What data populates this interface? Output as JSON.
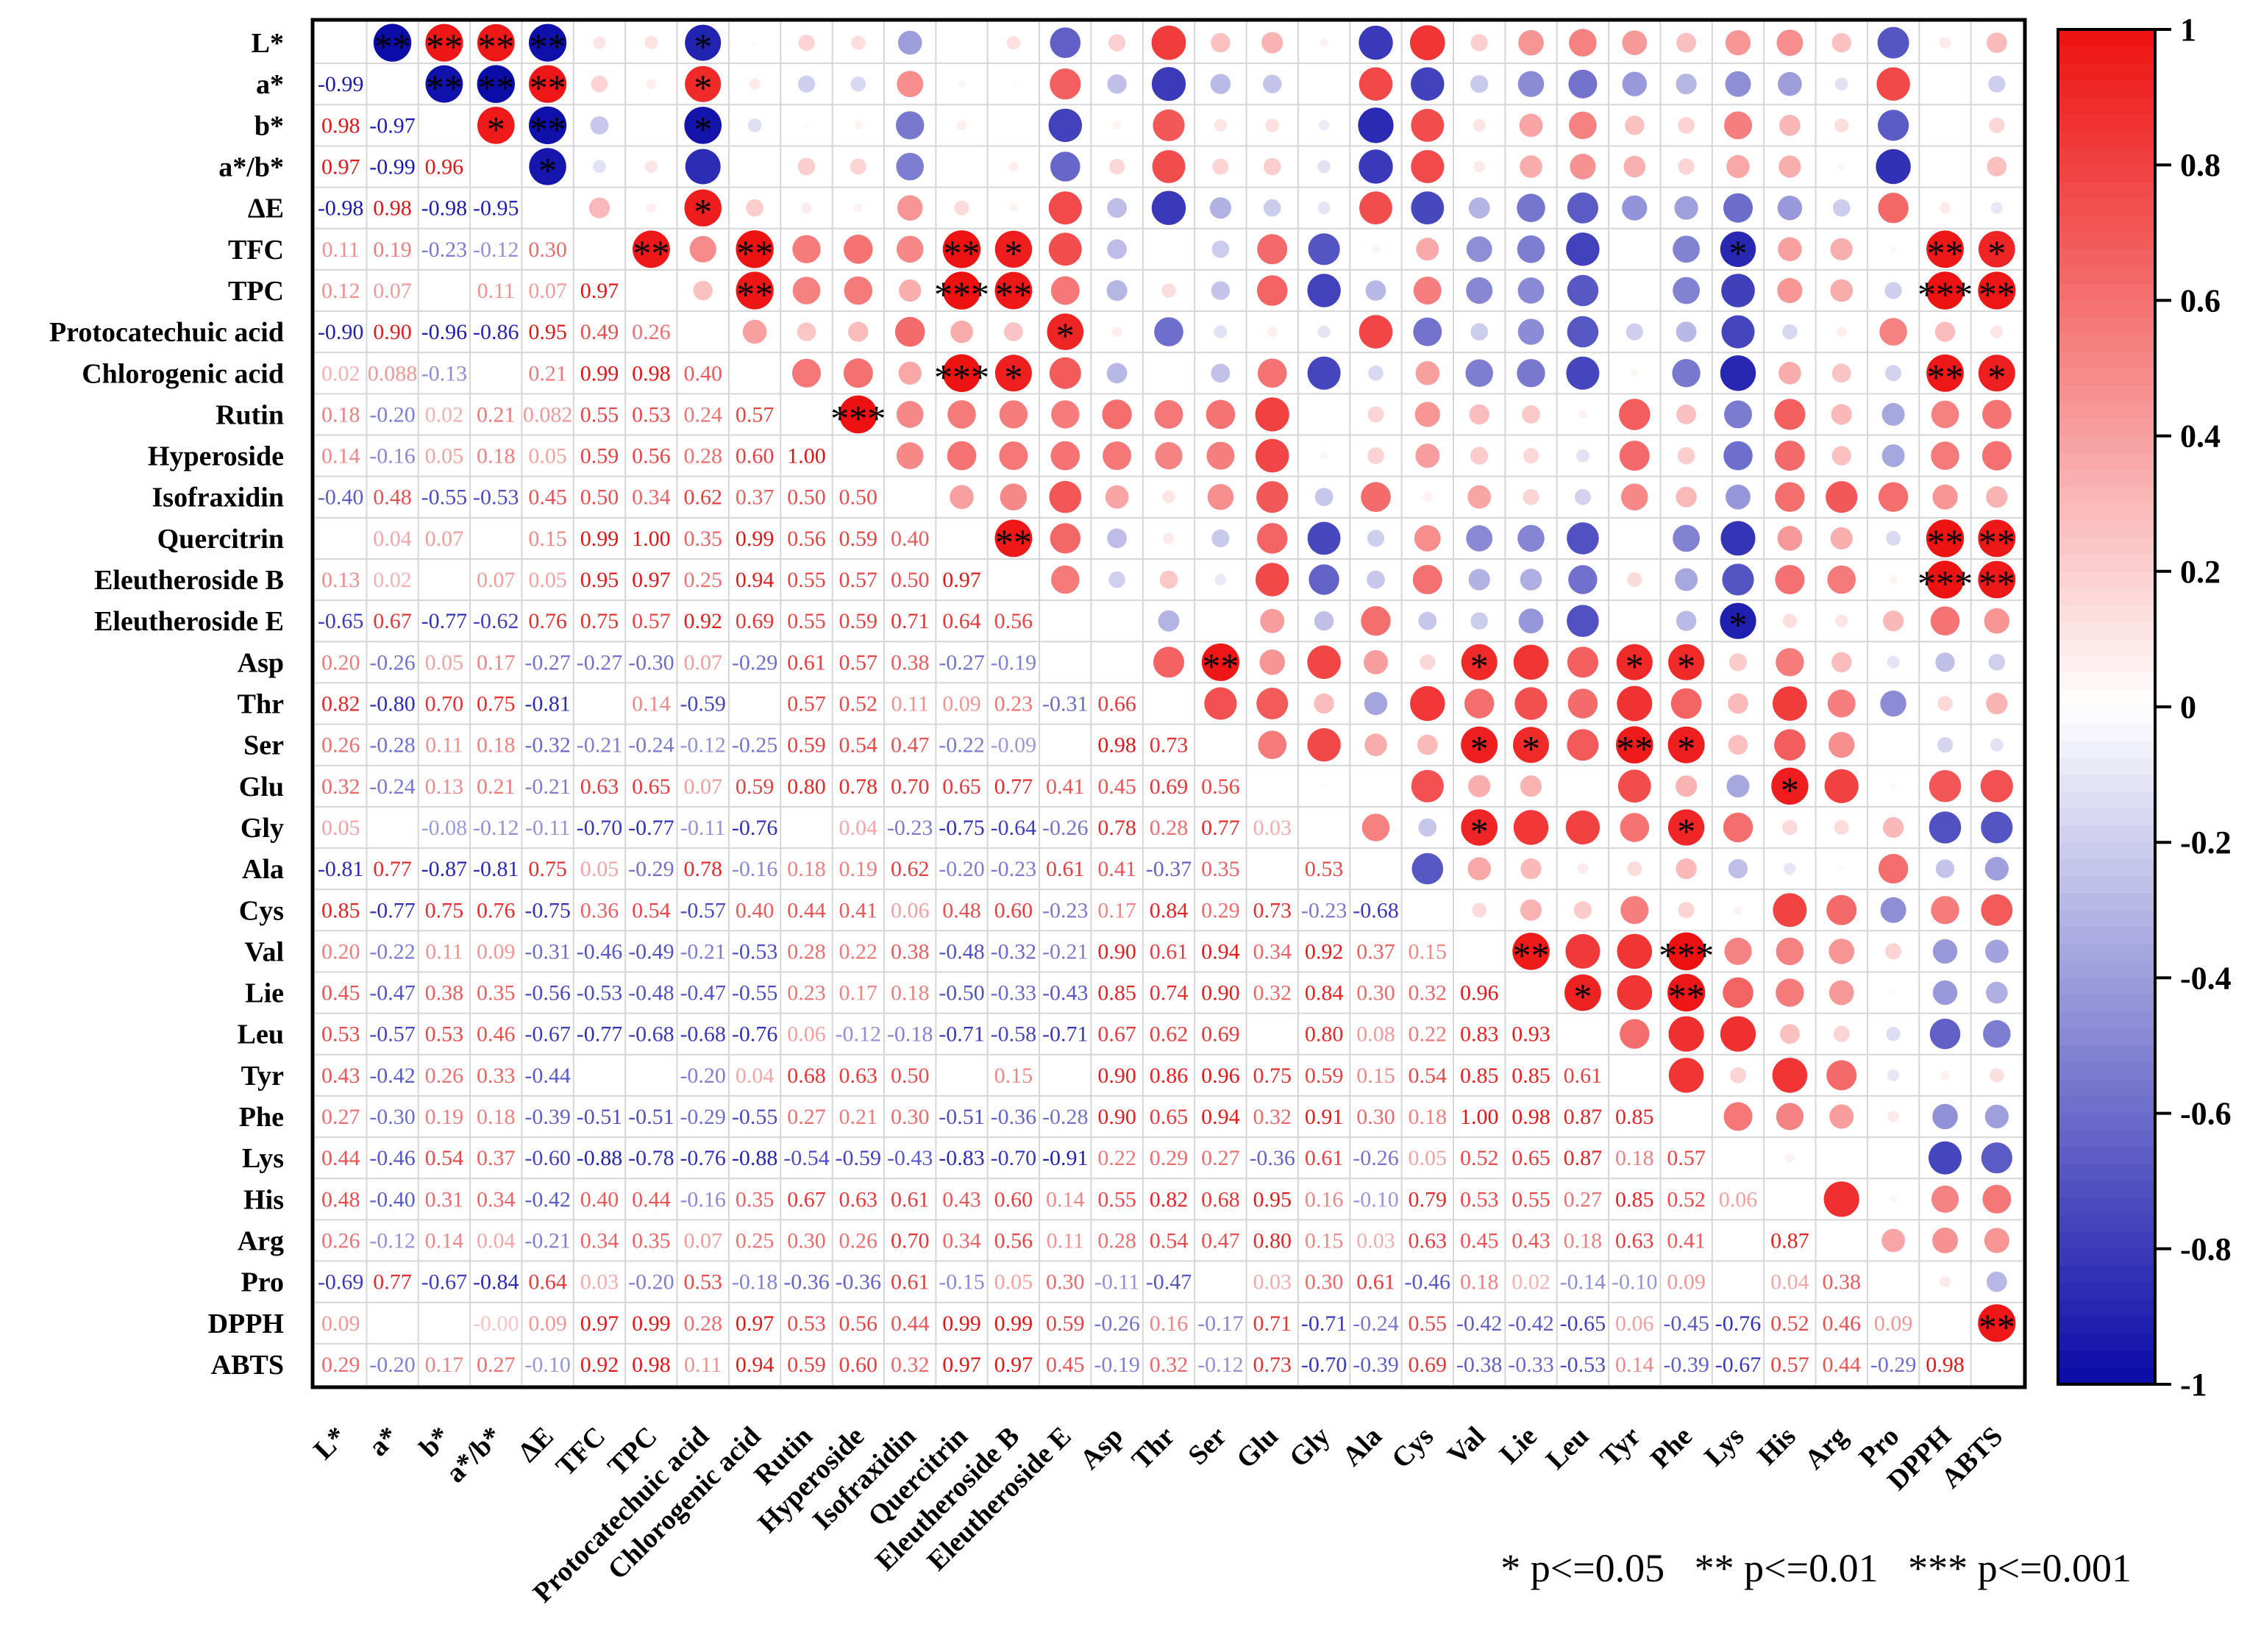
{
  "chart_data": {
    "type": "heatmap",
    "title": "",
    "xlabel": "",
    "ylabel": "",
    "labels": [
      "L*",
      "a*",
      "b*",
      "a*/b*",
      "ΔE",
      "TFC",
      "TPC",
      "Protocatechuic acid",
      "Chlorogenic acid",
      "Rutin",
      "Hyperoside",
      "Isofraxidin",
      "Quercitrin",
      "Eleutheroside B",
      "Eleutheroside E",
      "Asp",
      "Thr",
      "Ser",
      "Glu",
      "Gly",
      "Ala",
      "Cys",
      "Val",
      "Lie",
      "Leu",
      "Tyr",
      "Phe",
      "Lys",
      "His",
      "Arg",
      "Pro",
      "DPPH",
      "ABTS"
    ],
    "lower_values": [
      [],
      [
        "-0.99"
      ],
      [
        "0.98",
        "-0.97"
      ],
      [
        "0.97",
        "-0.99",
        "0.96"
      ],
      [
        "-0.98",
        "0.98",
        "-0.98",
        "-0.95"
      ],
      [
        "0.11",
        "0.19",
        "-0.23",
        "-0.12",
        "0.30"
      ],
      [
        "0.12",
        "0.07",
        "",
        "0.11",
        "0.07",
        "0.97"
      ],
      [
        "-0.90",
        "0.90",
        "-0.96",
        "-0.86",
        "0.95",
        "0.49",
        "0.26"
      ],
      [
        "0.02",
        "0.088",
        "-0.13",
        "",
        "0.21",
        "0.99",
        "0.98",
        "0.40"
      ],
      [
        "0.18",
        "-0.20",
        "0.02",
        "0.21",
        "0.082",
        "0.55",
        "0.53",
        "0.24",
        "0.57"
      ],
      [
        "0.14",
        "-0.16",
        "0.05",
        "0.18",
        "0.05",
        "0.59",
        "0.56",
        "0.28",
        "0.60",
        "1.00"
      ],
      [
        "-0.40",
        "0.48",
        "-0.55",
        "-0.53",
        "0.45",
        "0.50",
        "0.34",
        "0.62",
        "0.37",
        "0.50",
        "0.50"
      ],
      [
        "",
        "0.04",
        "0.07",
        "",
        "0.15",
        "0.99",
        "1.00",
        "0.35",
        "0.99",
        "0.56",
        "0.59",
        "0.40"
      ],
      [
        "0.13",
        "0.02",
        "",
        "0.07",
        "0.05",
        "0.95",
        "0.97",
        "0.25",
        "0.94",
        "0.55",
        "0.57",
        "0.50",
        "0.97"
      ],
      [
        "-0.65",
        "0.67",
        "-0.77",
        "-0.62",
        "0.76",
        "0.75",
        "0.57",
        "0.92",
        "0.69",
        "0.55",
        "0.59",
        "0.71",
        "0.64",
        "0.56"
      ],
      [
        "0.20",
        "-0.26",
        "0.05",
        "0.17",
        "-0.27",
        "-0.27",
        "-0.30",
        "0.07",
        "-0.29",
        "0.61",
        "0.57",
        "0.38",
        "-0.27",
        "-0.19",
        ""
      ],
      [
        "0.82",
        "-0.80",
        "0.70",
        "0.75",
        "-0.81",
        "",
        "0.14",
        "-0.59",
        "",
        "0.57",
        "0.52",
        "0.11",
        "0.09",
        "0.23",
        "-0.31",
        "0.66"
      ],
      [
        "0.26",
        "-0.28",
        "0.11",
        "0.18",
        "-0.32",
        "-0.21",
        "-0.24",
        "-0.12",
        "-0.25",
        "0.59",
        "0.54",
        "0.47",
        "-0.22",
        "-0.09",
        "",
        "0.98",
        "0.73"
      ],
      [
        "0.32",
        "-0.24",
        "0.13",
        "0.21",
        "-0.21",
        "0.63",
        "0.65",
        "0.07",
        "0.59",
        "0.80",
        "0.78",
        "0.70",
        "0.65",
        "0.77",
        "0.41",
        "0.45",
        "0.69",
        "0.56"
      ],
      [
        "0.05",
        "",
        "-0.08",
        "-0.12",
        "-0.11",
        "-0.70",
        "-0.77",
        "-0.11",
        "-0.76",
        "",
        "0.04",
        "-0.23",
        "-0.75",
        "-0.64",
        "-0.26",
        "0.78",
        "0.28",
        "0.77",
        "0.03"
      ],
      [
        "-0.81",
        "0.77",
        "-0.87",
        "-0.81",
        "0.75",
        "0.05",
        "-0.29",
        "0.78",
        "-0.16",
        "0.18",
        "0.19",
        "0.62",
        "-0.20",
        "-0.23",
        "0.61",
        "0.41",
        "-0.37",
        "0.35",
        "",
        "0.53"
      ],
      [
        "0.85",
        "-0.77",
        "0.75",
        "0.76",
        "-0.75",
        "0.36",
        "0.54",
        "-0.57",
        "0.40",
        "0.44",
        "0.41",
        "0.06",
        "0.48",
        "0.60",
        "-0.23",
        "0.17",
        "0.84",
        "0.29",
        "0.73",
        "-0.23",
        "-0.68"
      ],
      [
        "0.20",
        "-0.22",
        "0.11",
        "0.09",
        "-0.31",
        "-0.46",
        "-0.49",
        "-0.21",
        "-0.53",
        "0.28",
        "0.22",
        "0.38",
        "-0.48",
        "-0.32",
        "-0.21",
        "0.90",
        "0.61",
        "0.94",
        "0.34",
        "0.92",
        "0.37",
        "0.15"
      ],
      [
        "0.45",
        "-0.47",
        "0.38",
        "0.35",
        "-0.56",
        "-0.53",
        "-0.48",
        "-0.47",
        "-0.55",
        "0.23",
        "0.17",
        "0.18",
        "-0.50",
        "-0.33",
        "-0.43",
        "0.85",
        "0.74",
        "0.90",
        "0.32",
        "0.84",
        "0.30",
        "0.32",
        "0.96"
      ],
      [
        "0.53",
        "-0.57",
        "0.53",
        "0.46",
        "-0.67",
        "-0.77",
        "-0.68",
        "-0.68",
        "-0.76",
        "0.06",
        "-0.12",
        "-0.18",
        "-0.71",
        "-0.58",
        "-0.71",
        "0.67",
        "0.62",
        "0.69",
        "",
        "0.80",
        "0.08",
        "0.22",
        "0.83",
        "0.93"
      ],
      [
        "0.43",
        "-0.42",
        "0.26",
        "0.33",
        "-0.44",
        "",
        "",
        "-0.20",
        "0.04",
        "0.68",
        "0.63",
        "0.50",
        "",
        "0.15",
        "",
        "0.90",
        "0.86",
        "0.96",
        "0.75",
        "0.59",
        "0.15",
        "0.54",
        "0.85",
        "0.85",
        "0.61"
      ],
      [
        "0.27",
        "-0.30",
        "0.19",
        "0.18",
        "-0.39",
        "-0.51",
        "-0.51",
        "-0.29",
        "-0.55",
        "0.27",
        "0.21",
        "0.30",
        "-0.51",
        "-0.36",
        "-0.28",
        "0.90",
        "0.65",
        "0.94",
        "0.32",
        "0.91",
        "0.30",
        "0.18",
        "1.00",
        "0.98",
        "0.87",
        "0.85"
      ],
      [
        "0.44",
        "-0.46",
        "0.54",
        "0.37",
        "-0.60",
        "-0.88",
        "-0.78",
        "-0.76",
        "-0.88",
        "-0.54",
        "-0.59",
        "-0.43",
        "-0.83",
        "-0.70",
        "-0.91",
        "0.22",
        "0.29",
        "0.27",
        "-0.36",
        "0.61",
        "-0.26",
        "0.05",
        "0.52",
        "0.65",
        "0.87",
        "0.18",
        "0.57"
      ],
      [
        "0.48",
        "-0.40",
        "0.31",
        "0.34",
        "-0.42",
        "0.40",
        "0.44",
        "-0.16",
        "0.35",
        "0.67",
        "0.63",
        "0.61",
        "0.43",
        "0.60",
        "0.14",
        "0.55",
        "0.82",
        "0.68",
        "0.95",
        "0.16",
        "-0.10",
        "0.79",
        "0.53",
        "0.55",
        "0.27",
        "0.85",
        "0.52",
        "0.06"
      ],
      [
        "0.26",
        "-0.12",
        "0.14",
        "0.04",
        "-0.21",
        "0.34",
        "0.35",
        "0.07",
        "0.25",
        "0.30",
        "0.26",
        "0.70",
        "0.34",
        "0.56",
        "0.11",
        "0.28",
        "0.54",
        "0.47",
        "0.80",
        "0.15",
        "0.03",
        "0.63",
        "0.45",
        "0.43",
        "0.18",
        "0.63",
        "0.41",
        "",
        "0.87"
      ],
      [
        "-0.69",
        "0.77",
        "-0.67",
        "-0.84",
        "0.64",
        "0.03",
        "-0.20",
        "0.53",
        "-0.18",
        "-0.36",
        "-0.36",
        "0.61",
        "-0.15",
        "0.05",
        "0.30",
        "-0.11",
        "-0.47",
        "",
        "0.03",
        "0.30",
        "0.61",
        "-0.46",
        "0.18",
        "0.02",
        "-0.14",
        "-0.10",
        "0.09",
        "",
        "0.04",
        "0.38"
      ],
      [
        "0.09",
        "",
        "",
        "-0.00",
        "0.09",
        "0.97",
        "0.99",
        "0.28",
        "0.97",
        "0.53",
        "0.56",
        "0.44",
        "0.99",
        "0.99",
        "0.59",
        "-0.26",
        "0.16",
        "-0.17",
        "0.71",
        "-0.71",
        "-0.24",
        "0.55",
        "-0.42",
        "-0.42",
        "-0.65",
        "0.06",
        "-0.45",
        "-0.76",
        "0.52",
        "0.46",
        "0.09"
      ],
      [
        "0.29",
        "-0.20",
        "0.17",
        "0.27",
        "-0.10",
        "0.92",
        "0.98",
        "0.11",
        "0.94",
        "0.59",
        "0.60",
        "0.32",
        "0.97",
        "0.97",
        "0.45",
        "-0.19",
        "0.32",
        "-0.12",
        "0.73",
        "-0.70",
        "-0.39",
        "0.69",
        "-0.38",
        "-0.33",
        "-0.53",
        "0.14",
        "-0.39",
        "-0.67",
        "0.57",
        "0.44",
        "-0.29",
        "0.98"
      ]
    ],
    "significance": [
      {
        "row": 0,
        "col": 1,
        "marker": "**"
      },
      {
        "row": 0,
        "col": 2,
        "marker": "**"
      },
      {
        "row": 0,
        "col": 3,
        "marker": "**"
      },
      {
        "row": 0,
        "col": 4,
        "marker": "**"
      },
      {
        "row": 0,
        "col": 7,
        "marker": "*"
      },
      {
        "row": 1,
        "col": 2,
        "marker": "**"
      },
      {
        "row": 1,
        "col": 3,
        "marker": "**"
      },
      {
        "row": 1,
        "col": 4,
        "marker": "**"
      },
      {
        "row": 1,
        "col": 7,
        "marker": "*"
      },
      {
        "row": 2,
        "col": 3,
        "marker": "*"
      },
      {
        "row": 2,
        "col": 4,
        "marker": "**"
      },
      {
        "row": 2,
        "col": 7,
        "marker": "*"
      },
      {
        "row": 3,
        "col": 4,
        "marker": "*"
      },
      {
        "row": 4,
        "col": 7,
        "marker": "*"
      },
      {
        "row": 5,
        "col": 6,
        "marker": "**"
      },
      {
        "row": 5,
        "col": 8,
        "marker": "**"
      },
      {
        "row": 5,
        "col": 12,
        "marker": "**"
      },
      {
        "row": 5,
        "col": 13,
        "marker": "*"
      },
      {
        "row": 5,
        "col": 27,
        "marker": "*"
      },
      {
        "row": 5,
        "col": 31,
        "marker": "**"
      },
      {
        "row": 5,
        "col": 32,
        "marker": "*"
      },
      {
        "row": 6,
        "col": 8,
        "marker": "**"
      },
      {
        "row": 6,
        "col": 12,
        "marker": "***"
      },
      {
        "row": 6,
        "col": 13,
        "marker": "**"
      },
      {
        "row": 6,
        "col": 31,
        "marker": "***"
      },
      {
        "row": 6,
        "col": 32,
        "marker": "**"
      },
      {
        "row": 7,
        "col": 14,
        "marker": "*"
      },
      {
        "row": 8,
        "col": 12,
        "marker": "***"
      },
      {
        "row": 8,
        "col": 13,
        "marker": "*"
      },
      {
        "row": 8,
        "col": 31,
        "marker": "**"
      },
      {
        "row": 8,
        "col": 32,
        "marker": "*"
      },
      {
        "row": 9,
        "col": 10,
        "marker": "***"
      },
      {
        "row": 12,
        "col": 13,
        "marker": "**"
      },
      {
        "row": 12,
        "col": 31,
        "marker": "**"
      },
      {
        "row": 12,
        "col": 32,
        "marker": "**"
      },
      {
        "row": 13,
        "col": 31,
        "marker": "***"
      },
      {
        "row": 13,
        "col": 32,
        "marker": "**"
      },
      {
        "row": 14,
        "col": 27,
        "marker": "*"
      },
      {
        "row": 15,
        "col": 17,
        "marker": "**"
      },
      {
        "row": 15,
        "col": 22,
        "marker": "*"
      },
      {
        "row": 15,
        "col": 25,
        "marker": "*"
      },
      {
        "row": 15,
        "col": 26,
        "marker": "*"
      },
      {
        "row": 17,
        "col": 22,
        "marker": "*"
      },
      {
        "row": 17,
        "col": 23,
        "marker": "*"
      },
      {
        "row": 17,
        "col": 25,
        "marker": "**"
      },
      {
        "row": 17,
        "col": 26,
        "marker": "*"
      },
      {
        "row": 18,
        "col": 28,
        "marker": "*"
      },
      {
        "row": 19,
        "col": 22,
        "marker": "*"
      },
      {
        "row": 19,
        "col": 26,
        "marker": "*"
      },
      {
        "row": 22,
        "col": 23,
        "marker": "**"
      },
      {
        "row": 22,
        "col": 26,
        "marker": "***"
      },
      {
        "row": 23,
        "col": 24,
        "marker": "*"
      },
      {
        "row": 23,
        "col": 26,
        "marker": "**"
      },
      {
        "row": 31,
        "col": 32,
        "marker": "**"
      }
    ],
    "colorbar": {
      "range": [
        -1,
        1
      ],
      "ticks": [
        "1",
        "0.8",
        "0.6",
        "0.4",
        "0.2",
        "0",
        "-0.2",
        "-0.4",
        "-0.6",
        "-0.8",
        "-1"
      ],
      "colors": {
        "negative": "#0a0aa8",
        "zero": "#ffffff",
        "positive": "#ee1111"
      }
    },
    "significance_legend": "* p<=0.05   ** p<=0.01   *** p<=0.001"
  }
}
